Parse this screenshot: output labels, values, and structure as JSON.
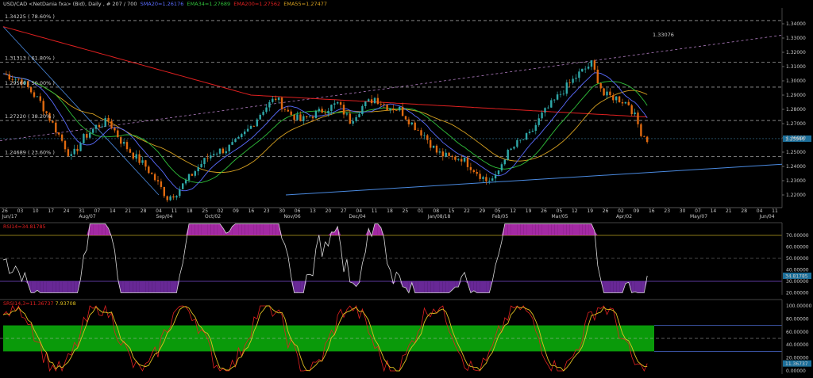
{
  "header": {
    "symbol": "USD/CAD <NetDania fxa> (Bid), Daily , # 207 / 700",
    "indicators": [
      {
        "text": "SMA20=1.26176",
        "color": "#5a6cff"
      },
      {
        "text": "EMA34=1.27689",
        "color": "#2fbf3a"
      },
      {
        "text": "EMA200=1.27562",
        "color": "#e02020"
      },
      {
        "text": "EMA55=1.27477",
        "color": "#d6a020"
      }
    ]
  },
  "price_panel": {
    "y_axis_labels": [
      "1.34000",
      "1.33000",
      "1.32000",
      "1.31000",
      "1.30000",
      "1.29000",
      "1.28000",
      "1.27000",
      "1.26000",
      "1.25000",
      "1.24000",
      "1.23000",
      "1.22000"
    ],
    "fib_labels": [
      {
        "text": "1.34225 ( 78.60% )"
      },
      {
        "text": "1.31313 ( 61.80% )"
      },
      {
        "text": "1.29560 ( 50.00% )"
      },
      {
        "text": "1.27220 ( 38.20% )"
      },
      {
        "text": "1.24689 ( 23.60% )"
      }
    ],
    "trendline_label": "1.33076",
    "current_price": "1.25946",
    "x_dates": [
      "26",
      "03",
      "10",
      "17",
      "24",
      "31",
      "07",
      "14",
      "21",
      "28",
      "04",
      "11",
      "18",
      "25",
      "02",
      "09",
      "16",
      "23",
      "30",
      "06",
      "13",
      "20",
      "27",
      "04",
      "11",
      "18",
      "25",
      "01",
      "08",
      "15",
      "22",
      "29",
      "05",
      "12",
      "19",
      "26",
      "05",
      "12",
      "19",
      "26",
      "02",
      "09",
      "16",
      "23",
      "30",
      "07",
      "14",
      "21",
      "28",
      "04",
      "11"
    ],
    "x_months": [
      "Jun/17",
      "Aug/07",
      "Sep/04",
      "Oct/02",
      "Nov/06",
      "Dec/04",
      "Jan/08/18",
      "Feb/05",
      "Mar/05",
      "Apr/02",
      "May/07",
      "Jun/04"
    ]
  },
  "rsi_panel": {
    "title": "RSI14=34.81785",
    "title_color": "#e02020",
    "y_axis_labels": [
      "70.00000",
      "60.00000",
      "50.00000",
      "40.00000",
      "30.00000",
      "20.00000"
    ],
    "current_value": "34.81785"
  },
  "stoch_panel": {
    "title_a": "SRSI14,3=11.36737",
    "title_b": "7.93708",
    "title_color_a": "#e02020",
    "title_color_b": "#e0c020",
    "y_axis_labels": [
      "100.00000",
      "80.00000",
      "60.00000",
      "40.00000",
      "20.00000",
      "0.00000"
    ],
    "current_value": "11.36737"
  },
  "colors": {
    "bull": "#2fa8a8",
    "bear": "#e06a10",
    "sma20": "#5a6cff",
    "ema34": "#2fbf3a",
    "ema200": "#e02020",
    "ema55": "#d6a020",
    "rsi_line": "#d8d8d8",
    "rsi_fill": "#7a2fb0",
    "stoch_k": "#e02020",
    "stoch_d": "#e0c020",
    "stoch_band": "#0a9a0a"
  }
}
